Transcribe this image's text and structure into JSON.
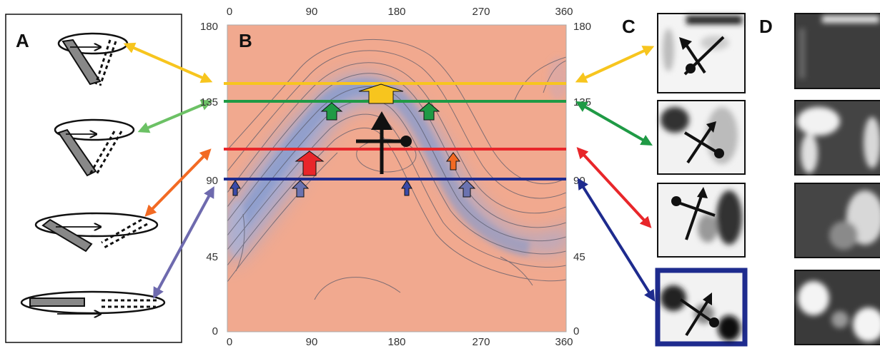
{
  "panels": {
    "a": "A",
    "b": "B",
    "c": "C",
    "d": "D"
  },
  "axes": {
    "x_ticks": [
      "0",
      "90",
      "180",
      "270",
      "360"
    ],
    "y_ticks": [
      "0",
      "45",
      "90",
      "135",
      "180"
    ]
  },
  "colors": {
    "yellow": "#f7c51e",
    "green": "#1f9a45",
    "red": "#e8262a",
    "blue": "#1e2b8e",
    "light_green": "#6cc165",
    "orange": "#f26a23",
    "purple": "#6e6aae",
    "map_bg": "#f1a98f",
    "map_low": "#97a9d6"
  },
  "icons": {
    "cone_pointers": [
      "tilted-cone-icon",
      "wide-cone-icon",
      "flattened-cone-icon",
      "flat-ellipse-icon"
    ],
    "vector_glyphs": [
      "cross-vector-icon"
    ]
  }
}
